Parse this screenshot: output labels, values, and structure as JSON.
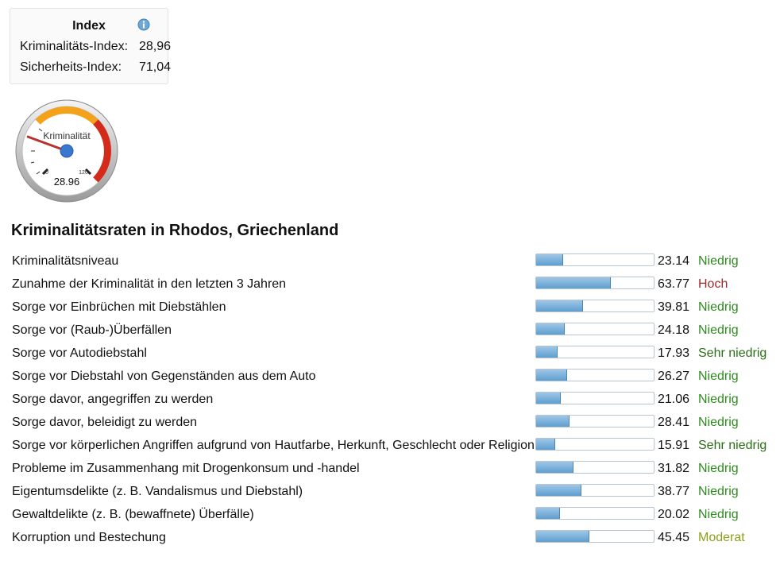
{
  "index_box": {
    "title": "Index",
    "crime_label": "Kriminalitäts-Index:",
    "crime_value": "28,96",
    "safety_label": "Sicherheits-Index:",
    "safety_value": "71,04"
  },
  "gauge": {
    "label": "Kriminalität",
    "min_label": "0",
    "max_label": "120",
    "value_text": "28.96",
    "value": 28.96,
    "max": 120
  },
  "section_title": "Kriminalitätsraten in Rhodos, Griechenland",
  "rows": [
    {
      "label": "Kriminalitätsniveau",
      "value": 23.14,
      "value_text": "23.14",
      "level": "Niedrig",
      "level_class": "lvl-niedrig"
    },
    {
      "label": "Zunahme der Kriminalität in den letzten 3 Jahren",
      "value": 63.77,
      "value_text": "63.77",
      "level": "Hoch",
      "level_class": "lvl-hoch"
    },
    {
      "label": "Sorge vor Einbrüchen mit Diebstählen",
      "value": 39.81,
      "value_text": "39.81",
      "level": "Niedrig",
      "level_class": "lvl-niedrig"
    },
    {
      "label": "Sorge vor (Raub-)Überfällen",
      "value": 24.18,
      "value_text": "24.18",
      "level": "Niedrig",
      "level_class": "lvl-niedrig"
    },
    {
      "label": "Sorge vor Autodiebstahl",
      "value": 17.93,
      "value_text": "17.93",
      "level": "Sehr niedrig",
      "level_class": "lvl-sehr"
    },
    {
      "label": "Sorge vor Diebstahl von Gegenständen aus dem Auto",
      "value": 26.27,
      "value_text": "26.27",
      "level": "Niedrig",
      "level_class": "lvl-niedrig"
    },
    {
      "label": "Sorge davor, angegriffen zu werden",
      "value": 21.06,
      "value_text": "21.06",
      "level": "Niedrig",
      "level_class": "lvl-niedrig"
    },
    {
      "label": "Sorge davor, beleidigt zu werden",
      "value": 28.41,
      "value_text": "28.41",
      "level": "Niedrig",
      "level_class": "lvl-niedrig"
    },
    {
      "label": "Sorge vor körperlichen Angriffen aufgrund von Hautfarbe, Herkunft, Geschlecht oder Religion",
      "value": 15.91,
      "value_text": "15.91",
      "level": "Sehr niedrig",
      "level_class": "lvl-sehr"
    },
    {
      "label": "Probleme im Zusammenhang mit Drogenkonsum und -handel",
      "value": 31.82,
      "value_text": "31.82",
      "level": "Niedrig",
      "level_class": "lvl-niedrig"
    },
    {
      "label": "Eigentumsdelikte (z. B. Vandalismus und Diebstahl)",
      "value": 38.77,
      "value_text": "38.77",
      "level": "Niedrig",
      "level_class": "lvl-niedrig"
    },
    {
      "label": "Gewaltdelikte (z. B. (bewaffnete) Überfälle)",
      "value": 20.02,
      "value_text": "20.02",
      "level": "Niedrig",
      "level_class": "lvl-niedrig"
    },
    {
      "label": "Korruption und Bestechung",
      "value": 45.45,
      "value_text": "45.45",
      "level": "Moderat",
      "level_class": "lvl-moderat"
    }
  ]
}
